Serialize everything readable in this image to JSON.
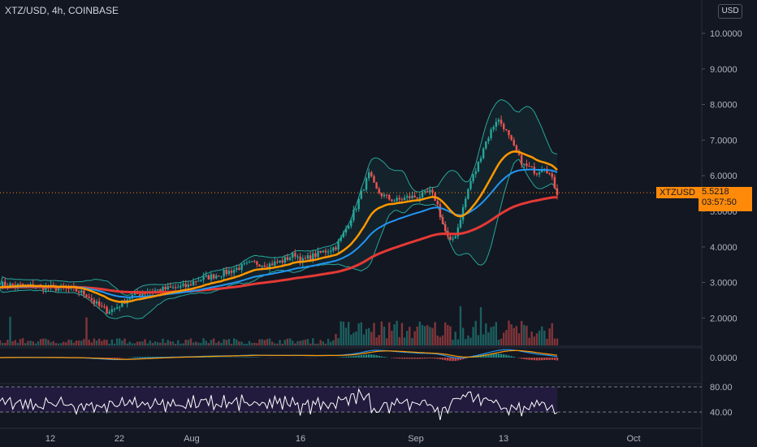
{
  "header": {
    "symbol_line": "XTZ/USD, 4h, COINBASE",
    "currency_button": "USD"
  },
  "price_tag": {
    "label": "XTZUSD",
    "value": "5.5218",
    "countdown": "03:57:50"
  },
  "colors": {
    "background": "#131722",
    "up": "#26a69a",
    "down": "#ef5350",
    "ema_fast": "#ff9800",
    "ema_mid": "#2196f3",
    "ema_slow": "#e53935",
    "bollinger": "#26a69a",
    "rsi_band": "#2a1e4a",
    "rsi_line": "#ffffff",
    "price_line": "#ff8a0a"
  },
  "chart_data": {
    "type": "line",
    "symbol": "XTZ/USD",
    "timeframe": "4h",
    "x_ticks": [
      "12",
      "22",
      "Aug",
      "16",
      "Sep",
      "13",
      "Oct"
    ],
    "y_ticks": [
      "10.0000",
      "9.0000",
      "8.0000",
      "7.0000",
      "6.0000",
      "5.0000",
      "4.0000",
      "3.0000",
      "2.0000"
    ],
    "ylim": [
      1.5,
      10.5
    ],
    "last_price": 5.5218,
    "panels": [
      {
        "name": "price",
        "overlays": [
          "bollinger bands",
          "moving averages"
        ]
      },
      {
        "name": "volume"
      },
      {
        "name": "macd",
        "y_ticks": [
          "0.0000"
        ]
      },
      {
        "name": "rsi",
        "y_ticks": [
          "80.00",
          "40.00"
        ]
      }
    ],
    "price_path": [
      [
        0,
        2.95
      ],
      [
        4,
        2.9
      ],
      [
        8,
        2.85
      ],
      [
        11,
        2.8
      ],
      [
        13,
        2.65
      ],
      [
        14,
        2.45
      ],
      [
        15,
        2.3
      ],
      [
        16,
        2.2
      ],
      [
        17,
        2.25
      ],
      [
        18,
        2.4
      ],
      [
        19,
        2.55
      ],
      [
        20,
        2.65
      ],
      [
        22,
        2.75
      ],
      [
        24,
        2.8
      ],
      [
        26,
        2.85
      ],
      [
        28,
        2.9
      ],
      [
        29,
        3.05
      ],
      [
        30,
        3.1
      ],
      [
        32,
        3.2
      ],
      [
        34,
        3.3
      ],
      [
        36,
        3.45
      ],
      [
        38,
        3.55
      ],
      [
        40,
        3.5
      ],
      [
        42,
        3.6
      ],
      [
        44,
        3.8
      ],
      [
        45,
        3.6
      ],
      [
        46,
        3.7
      ],
      [
        48,
        3.85
      ],
      [
        50,
        4.0
      ],
      [
        51,
        4.3
      ],
      [
        52,
        4.7
      ],
      [
        53,
        5.1
      ],
      [
        54,
        5.6
      ],
      [
        55,
        6.05
      ],
      [
        56,
        5.6
      ],
      [
        57,
        5.45
      ],
      [
        58,
        5.35
      ],
      [
        59,
        5.3
      ],
      [
        60,
        5.35
      ],
      [
        61,
        5.4
      ],
      [
        62,
        5.4
      ],
      [
        63,
        5.45
      ],
      [
        64,
        5.55
      ],
      [
        65,
        5.3
      ],
      [
        66,
        4.6
      ],
      [
        67,
        4.1
      ],
      [
        68,
        4.4
      ],
      [
        69,
        5.1
      ],
      [
        70,
        5.8
      ],
      [
        71,
        6.2
      ],
      [
        72,
        6.8
      ],
      [
        73,
        7.2
      ],
      [
        74,
        7.6
      ],
      [
        75,
        7.4
      ],
      [
        76,
        7.0
      ],
      [
        77,
        6.6
      ],
      [
        78,
        6.3
      ],
      [
        79,
        6.2
      ],
      [
        80,
        6.1
      ],
      [
        81,
        6.3
      ],
      [
        82,
        6.0
      ],
      [
        83,
        5.52
      ]
    ]
  }
}
